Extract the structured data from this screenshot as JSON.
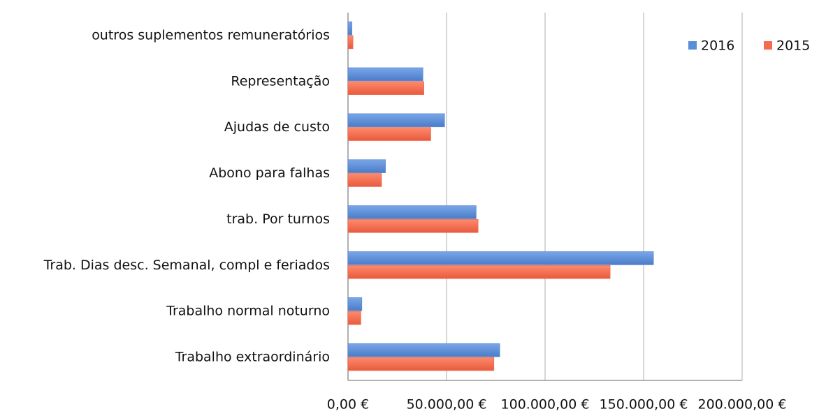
{
  "chart_data": {
    "type": "hbar",
    "categories": [
      "outros suplementos remuneratórios",
      "Representação",
      "Ajudas de custo",
      "Abono para falhas",
      "trab. Por turnos",
      "Trab. Dias desc. Semanal, compl e feriados",
      "Trabalho normal noturno",
      "Trabalho extraordinário"
    ],
    "series": [
      {
        "name": "2016",
        "color": "#5b8ed8",
        "values": [
          2000,
          38000,
          49000,
          19000,
          65000,
          155000,
          7000,
          77000
        ]
      },
      {
        "name": "2015",
        "color": "#f26d50",
        "values": [
          2500,
          38500,
          42000,
          17000,
          66000,
          133000,
          6500,
          74000
        ]
      }
    ],
    "xlim": [
      0,
      200000
    ],
    "xticks": [
      {
        "value": 0,
        "label": "0,00 €"
      },
      {
        "value": 50000,
        "label": "50.000,00 €"
      },
      {
        "value": 100000,
        "label": "100.000,00 €"
      },
      {
        "value": 150000,
        "label": "150.000,00 €"
      },
      {
        "value": 200000,
        "label": "200.000,00 €"
      }
    ],
    "grid": true,
    "legend": "top-right"
  }
}
